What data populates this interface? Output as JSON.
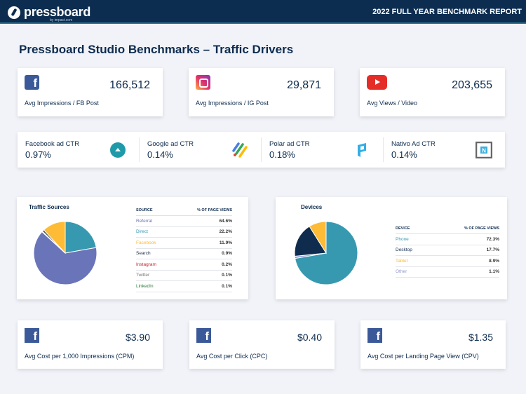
{
  "header": {
    "brand": "pressboard",
    "brand_sub": "by impact.com",
    "report": "2022 FULL YEAR BENCHMARK REPORT"
  },
  "title": "Pressboard Studio Benchmarks – Traffic Drivers",
  "kpis": [
    {
      "icon": "facebook-icon",
      "value": "166,512",
      "label": "Avg Impressions / FB Post"
    },
    {
      "icon": "instagram-icon",
      "value": "29,871",
      "label": "Avg Impressions / IG Post"
    },
    {
      "icon": "youtube-icon",
      "value": "203,655",
      "label": "Avg Views / Video"
    }
  ],
  "ctr": [
    {
      "label": "Facebook ad CTR",
      "value": "0.97%",
      "icon": "meta-ads-icon"
    },
    {
      "label": "Google ad CTR",
      "value": "0.14%",
      "icon": "google-ads-icon"
    },
    {
      "label": "Polar ad CTR",
      "value": "0.18%",
      "icon": "polar-icon"
    },
    {
      "label": "Nativo Ad CTR",
      "value": "0.14%",
      "icon": "nativo-icon"
    }
  ],
  "chart_data": [
    {
      "type": "pie",
      "title": "Traffic Sources",
      "col1": "SOURCE",
      "col2": "% OF PAGE VIEWS",
      "slices": [
        {
          "name": "Referral",
          "value": 64.6,
          "label": "64.6%",
          "color": "#6a74b9"
        },
        {
          "name": "Direct",
          "value": 22.2,
          "label": "22.2%",
          "color": "#3799b0"
        },
        {
          "name": "Facebook",
          "value": 11.9,
          "label": "11.9%",
          "color": "#fdbb36"
        },
        {
          "name": "Search",
          "value": 0.9,
          "label": "0.9%",
          "color": "#1b2a44"
        },
        {
          "name": "Instagram",
          "value": 0.2,
          "label": "0.2%",
          "color": "#c2262e"
        },
        {
          "name": "Twitter",
          "value": 0.1,
          "label": "0.1%",
          "color": "#777777"
        },
        {
          "name": "LinkedIn",
          "value": 0.1,
          "label": "0.1%",
          "color": "#2f7a3b"
        }
      ],
      "pie_order": [
        "Direct",
        "Referral",
        "LinkedIn",
        "Twitter",
        "Instagram",
        "Search",
        "Facebook"
      ]
    },
    {
      "type": "pie",
      "title": "Devices",
      "col1": "DEVICE",
      "col2": "% OF PAGE VIEWS",
      "slices": [
        {
          "name": "Phone",
          "value": 72.3,
          "label": "72.3%",
          "color": "#3799b0"
        },
        {
          "name": "Desktop",
          "value": 17.7,
          "label": "17.7%",
          "color": "#0f2c4f"
        },
        {
          "name": "Tablet",
          "value": 8.9,
          "label": "8.9%",
          "color": "#fdbb36"
        },
        {
          "name": "Other",
          "value": 1.1,
          "label": "1.1%",
          "color": "#8e97cf"
        }
      ],
      "pie_order": [
        "Phone",
        "Other",
        "Desktop",
        "Tablet"
      ]
    }
  ],
  "costs": [
    {
      "value": "$3.90",
      "label": "Avg Cost per 1,000 Impressions (CPM)"
    },
    {
      "value": "$0.40",
      "label": "Avg Cost per Click (CPC)"
    },
    {
      "value": "$1.35",
      "label": "Avg Cost per Landing Page View (CPV)"
    }
  ]
}
